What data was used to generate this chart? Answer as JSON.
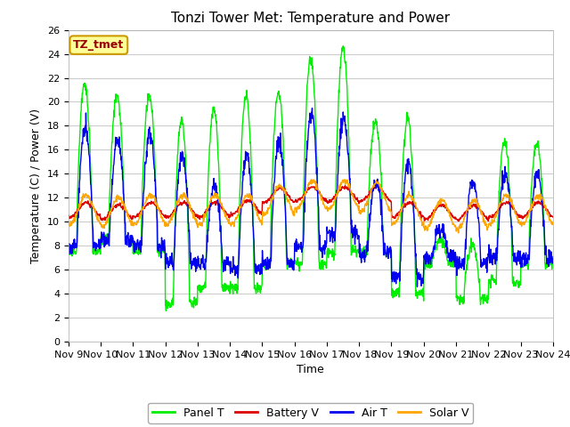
{
  "title": "Tonzi Tower Met: Temperature and Power",
  "xlabel": "Time",
  "ylabel": "Temperature (C) / Power (V)",
  "ylim": [
    0,
    26
  ],
  "yticks": [
    0,
    2,
    4,
    6,
    8,
    10,
    12,
    14,
    16,
    18,
    20,
    22,
    24,
    26
  ],
  "x_labels": [
    "Nov 9",
    "Nov 10",
    "Nov 11",
    "Nov 12",
    "Nov 13",
    "Nov 14",
    "Nov 15",
    "Nov 16",
    "Nov 17",
    "Nov 18",
    "Nov 19",
    "Nov 20",
    "Nov 21",
    "Nov 22",
    "Nov 23",
    "Nov 24"
  ],
  "legend_label": "TZ_tmet",
  "series_names": [
    "Panel T",
    "Battery V",
    "Air T",
    "Solar V"
  ],
  "series_colors": [
    "#00ee00",
    "#dd0000",
    "#0000ee",
    "#ffa500"
  ],
  "fig_bg": "#ffffff",
  "plot_bg": "#ffffff",
  "grid_color": "#cccccc",
  "title_fontsize": 11,
  "axis_fontsize": 9,
  "tick_fontsize": 8,
  "legend_fontsize": 9
}
